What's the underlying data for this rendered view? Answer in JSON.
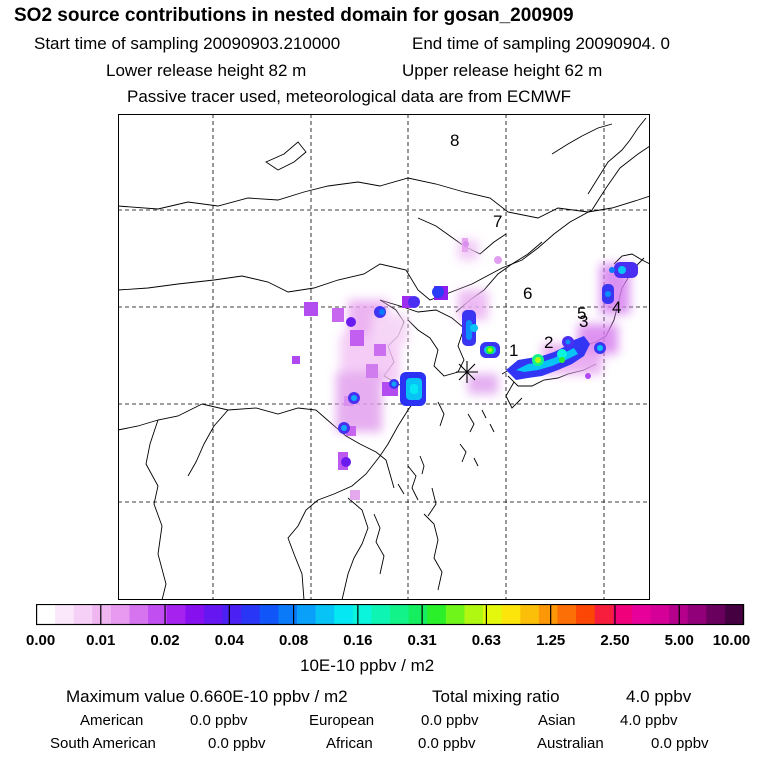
{
  "header": {
    "title": "SO2 source contributions in nested domain for gosan_200909",
    "start_time": "Start time of sampling 20090903.210000",
    "end_time": "End time of sampling 20090904.     0",
    "lower_height": "Lower release height   82 m",
    "upper_height": "Upper release height   62 m",
    "tracer_note": "Passive tracer used, meteorological data are from ECMWF"
  },
  "map": {
    "region_labels": [
      "8",
      "7",
      "6",
      "5",
      "4",
      "3",
      "2",
      "1"
    ],
    "receptor": "gosan"
  },
  "colorbar": {
    "colors": [
      "#ffffff",
      "#fbe8fb",
      "#f6d0f6",
      "#efb6f2",
      "#e79aef",
      "#d673ef",
      "#c14ef0",
      "#a522ef",
      "#8710ef",
      "#6616f0",
      "#4b20f2",
      "#2a36f5",
      "#0f55f7",
      "#0a7af8",
      "#08a0f8",
      "#07c3f6",
      "#05e7f2",
      "#0af5dc",
      "#0ef5b3",
      "#12f38a",
      "#15ee5f",
      "#2af02a",
      "#70f51a",
      "#b0f812",
      "#e3f80d",
      "#fbe50b",
      "#fcbf09",
      "#fc9807",
      "#fc6e06",
      "#fb4606",
      "#f71d3c",
      "#f0007a",
      "#e8009a",
      "#d40098",
      "#b5008c",
      "#910078",
      "#6a005e",
      "#440040"
    ],
    "tick_labels": [
      "0.00",
      "0.01",
      "0.02",
      "0.04",
      "0.08",
      "0.16",
      "0.31",
      "0.63",
      "1.25",
      "2.50",
      "5.00",
      "10.00"
    ],
    "unit": "10E-10 ppbv / m2"
  },
  "summary": {
    "max_value": "Maximum value  0.660E-10 ppbv / m2",
    "total_label": "Total mixing ratio",
    "total_value": "4.0 ppbv",
    "regions": [
      {
        "name": "American",
        "value": "0.0 ppbv"
      },
      {
        "name": "European",
        "value": "0.0 ppbv"
      },
      {
        "name": "Asian",
        "value": "4.0 ppbv"
      },
      {
        "name": "South American",
        "value": "0.0 ppbv"
      },
      {
        "name": "African",
        "value": "0.0 ppbv"
      },
      {
        "name": "Australian",
        "value": "0.0 ppbv"
      }
    ]
  }
}
